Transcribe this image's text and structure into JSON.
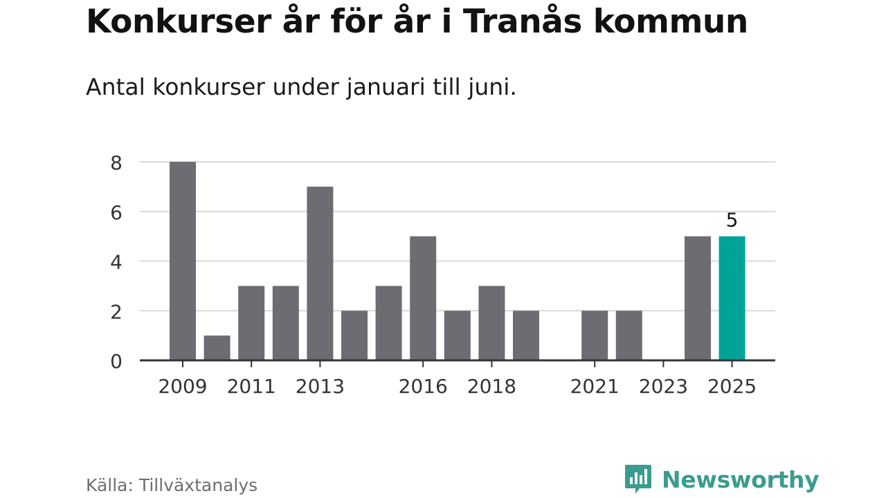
{
  "header": {
    "title": "Konkurser år för år i Tranås kommun",
    "subtitle": "Antal konkurser under januari till juni."
  },
  "footer": {
    "source": "Källa: Tillväxtanalys",
    "brand": "Newsworthy"
  },
  "colors": {
    "bar": "#6d6c73",
    "highlight": "#00a398",
    "grid": "#d9d9d9",
    "axis": "#333333",
    "brand": "#3a9c8f"
  },
  "chart_data": {
    "type": "bar",
    "title": "Konkurser år för år i Tranås kommun",
    "subtitle": "Antal konkurser under januari till juni.",
    "xlabel": "",
    "ylabel": "",
    "categories": [
      "2009",
      "2010",
      "2011",
      "2012",
      "2013",
      "2014",
      "2015",
      "2016",
      "2017",
      "2018",
      "2019",
      "2020",
      "2021",
      "2022",
      "2023",
      "2024",
      "2025"
    ],
    "values": [
      8,
      1,
      3,
      3,
      7,
      2,
      3,
      5,
      2,
      3,
      2,
      0,
      2,
      2,
      0,
      5,
      5
    ],
    "highlight_category": "2025",
    "data_labels": [
      {
        "category": "2025",
        "text": "5"
      }
    ],
    "x_tick_labels": [
      "2009",
      "2011",
      "2013",
      "2016",
      "2018",
      "2021",
      "2023",
      "2025"
    ],
    "y_ticks": [
      0,
      2,
      4,
      6,
      8
    ],
    "ylim": [
      0,
      8
    ],
    "grid": true,
    "legend": "none"
  }
}
